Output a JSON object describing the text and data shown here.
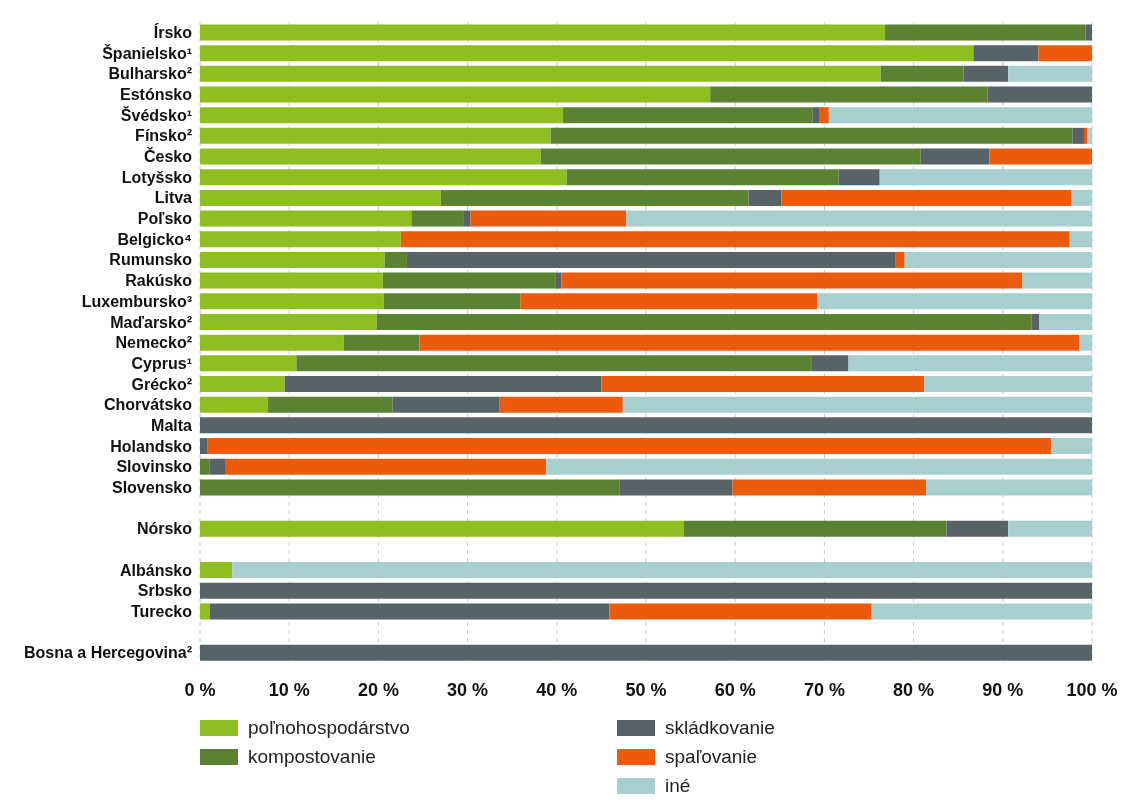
{
  "chart_data": {
    "type": "bar",
    "orientation": "horizontal",
    "stacked": true,
    "grid": "x",
    "legend": "bottom",
    "categories": [
      "Írsko",
      "Španielsko¹",
      "Bulharsko²",
      "Estónsko",
      "Švédsko¹",
      "Fínsko²",
      "Česko",
      "Lotyšsko",
      "Litva",
      "Poľsko",
      "Belgicko⁴",
      "Rumunsko",
      "Rakúsko",
      "Luxembursko³",
      "Maďarsko²",
      "Nemecko²",
      "Cyprus¹",
      "Grécko²",
      "Chorvátsko",
      "Malta",
      "Holandsko",
      "Slovinsko",
      "Slovensko",
      null,
      "Nórsko",
      null,
      "Albánsko",
      "Srbsko",
      "Turecko",
      null,
      "Bosna a Hercegovina²"
    ],
    "xlim": [
      0,
      100
    ],
    "xticks": [
      {
        "value": 0,
        "label": "0 %"
      },
      {
        "value": 10,
        "label": "10 %"
      },
      {
        "value": 20,
        "label": "20 %"
      },
      {
        "value": 30,
        "label": "30 %"
      },
      {
        "value": 40,
        "label": "40 %"
      },
      {
        "value": 50,
        "label": "50 %"
      },
      {
        "value": 60,
        "label": "60 %"
      },
      {
        "value": 70,
        "label": "70 %"
      },
      {
        "value": 80,
        "label": "80 %"
      },
      {
        "value": 90,
        "label": "90 %"
      },
      {
        "value": 100,
        "label": "100 %"
      }
    ],
    "series": [
      {
        "name": "poľnohospodárstvo",
        "color": "#8fbe21",
        "values": [
          76.8,
          86.7,
          76.3,
          57.2,
          40.7,
          39.3,
          38.2,
          41.1,
          27.0,
          23.7,
          22.5,
          20.7,
          20.5,
          20.6,
          19.8,
          16.1,
          10.8,
          9.5,
          7.6,
          0,
          0,
          0,
          0,
          null,
          54.2,
          null,
          3.6,
          0,
          1.1,
          null,
          0
        ]
      },
      {
        "name": "kompostovanie",
        "color": "#5b8232",
        "values": [
          22.5,
          0,
          9.3,
          31.1,
          28.0,
          58.5,
          42.6,
          30.5,
          34.5,
          5.8,
          0,
          2.5,
          19.4,
          15.3,
          73.4,
          8.5,
          57.8,
          0,
          14.0,
          0,
          0,
          1.1,
          47.0,
          null,
          29.5,
          null,
          0,
          0,
          0,
          null,
          0
        ]
      },
      {
        "name": "skládkovanie",
        "color": "#576367",
        "values": [
          0.7,
          7.3,
          5.0,
          11.7,
          0.7,
          1.3,
          7.7,
          4.6,
          3.7,
          0.8,
          0,
          54.8,
          0.6,
          0,
          0.9,
          0,
          4.1,
          35.5,
          12.0,
          100,
          0.8,
          1.7,
          12.7,
          null,
          6.9,
          null,
          0,
          100,
          44.8,
          null,
          100
        ]
      },
      {
        "name": "spaľovanie",
        "color": "#ea5b0c",
        "values": [
          0,
          6.0,
          0,
          0,
          1.1,
          0.4,
          11.5,
          0,
          32.5,
          17.5,
          75.0,
          1.0,
          51.7,
          33.3,
          0,
          74.0,
          0,
          36.2,
          13.8,
          0,
          94.6,
          36.0,
          21.7,
          null,
          0,
          null,
          0,
          0,
          29.4,
          null,
          0
        ]
      },
      {
        "name": "iné",
        "color": "#a7cfd0",
        "values": [
          0,
          0,
          9.4,
          0,
          29.5,
          0.5,
          0,
          23.8,
          2.3,
          52.2,
          2.5,
          21.0,
          7.8,
          30.8,
          5.9,
          1.4,
          27.3,
          18.8,
          52.6,
          0,
          4.6,
          61.2,
          18.6,
          null,
          9.4,
          null,
          96.4,
          0,
          24.7,
          null,
          0
        ]
      }
    ]
  }
}
